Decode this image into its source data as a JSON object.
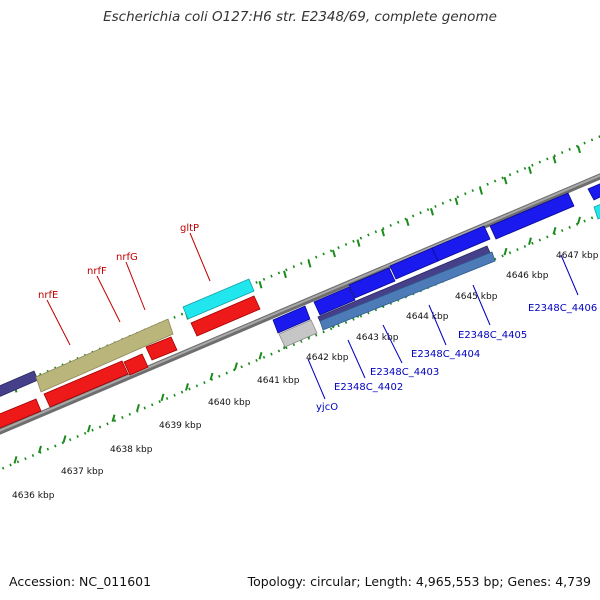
{
  "title": "Escherichia coli O127:H6 str. E2348/69, complete genome",
  "footer": {
    "accession": "Accession: NC_011601",
    "summary": "Topology: circular; Length: 4,965,553 bp; Genes: 4,739"
  },
  "colors": {
    "backbone": "#8a8a8a",
    "cds_forward": "#1a1aee",
    "cds_reverse": "#ee1a1a",
    "rna": "#22e6ee",
    "other": "#c6c6c6",
    "gene_forward": "#46408a",
    "gene_reverse": "#bab57a",
    "gene_alt": "#4c7bb8",
    "label_red": "#c00000",
    "label_blue": "#0000c0",
    "tick": "#1a8a1a"
  },
  "tick_labels": [
    "4636 kbp",
    "4637 kbp",
    "4638 kbp",
    "4639 kbp",
    "4640 kbp",
    "4641 kbp",
    "4642 kbp",
    "4643 kbp",
    "4644 kbp",
    "4645 kbp",
    "4646 kbp",
    "4647 kbp"
  ],
  "gene_labels_top": [
    "nrfE",
    "nrfF",
    "nrfG",
    "gltP"
  ],
  "gene_labels_bottom": [
    "yjcO",
    "E2348C_4402",
    "E2348C_4403",
    "E2348C_4404",
    "E2348C_4405",
    "E2348C_4406"
  ]
}
